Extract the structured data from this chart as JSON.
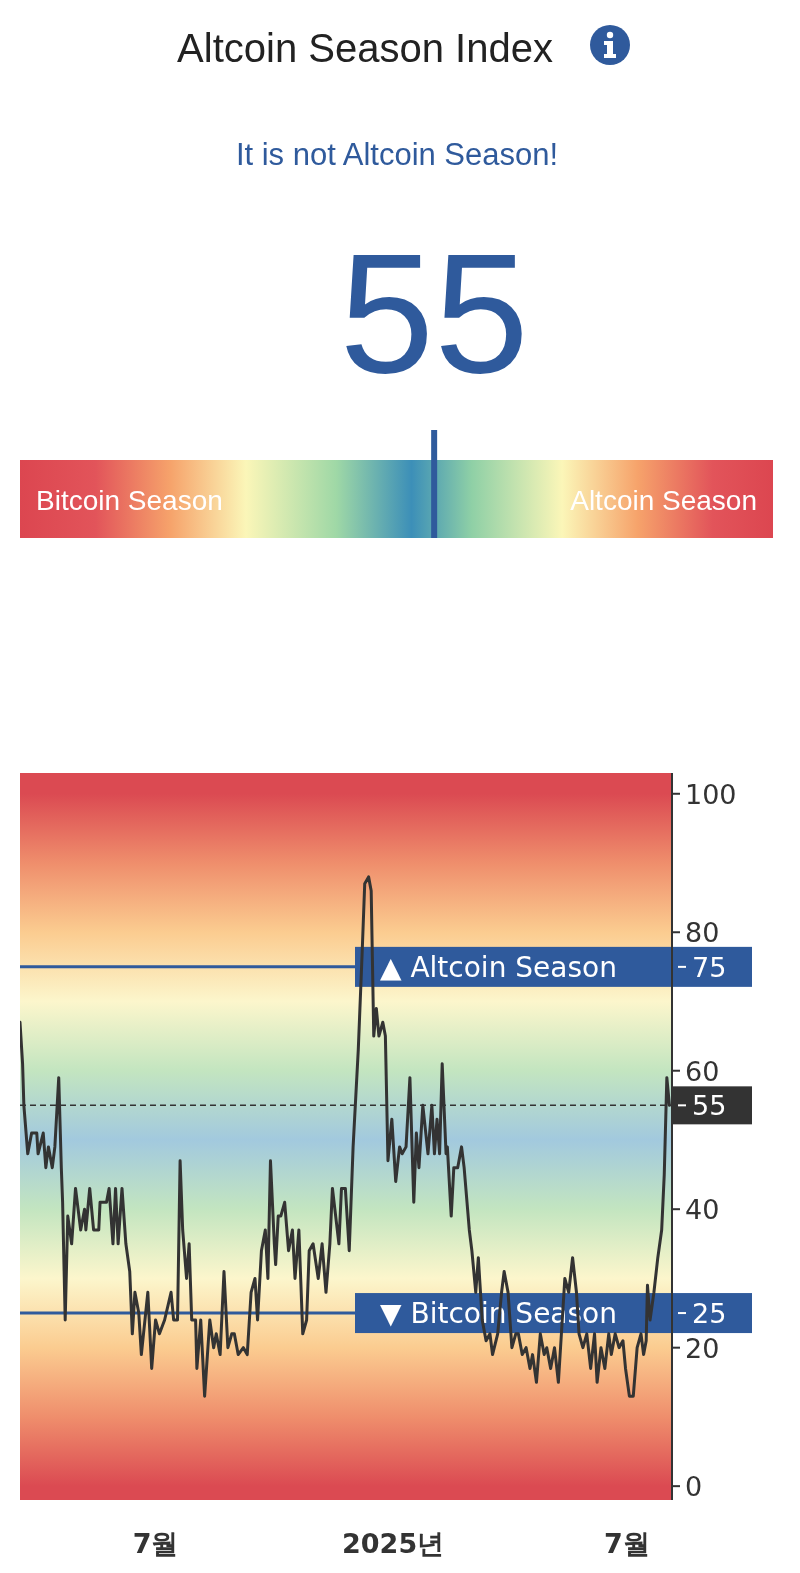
{
  "chart_data": [
    {
      "type": "other",
      "title": "Altcoin Season Index",
      "subtitle": "It is not Altcoin Season!",
      "annotations": [
        "Bitcoin Season",
        "Altcoin Season"
      ],
      "values": [
        55
      ],
      "color": "#2f5a9c",
      "data_labels": true
    },
    {
      "type": "line",
      "color": "#333333",
      "x": [
        "2024-03-18",
        "2024-03-20",
        "2024-03-21",
        "2024-03-24",
        "2024-03-27",
        "2024-03-31",
        "2024-04-01",
        "2024-04-05",
        "2024-04-07",
        "2024-04-09",
        "2024-04-12",
        "2024-04-14",
        "2024-04-17",
        "2024-04-19",
        "2024-04-20",
        "2024-04-22",
        "2024-04-24",
        "2024-04-27",
        "2024-04-30",
        "2024-05-04",
        "2024-05-07",
        "2024-05-08",
        "2024-05-11",
        "2024-05-14",
        "2024-05-18",
        "2024-05-19",
        "2024-05-24",
        "2024-05-26",
        "2024-05-29",
        "2024-05-31",
        "2024-06-02",
        "2024-06-05",
        "2024-06-08",
        "2024-06-11",
        "2024-06-13",
        "2024-06-15",
        "2024-06-18",
        "2024-06-20",
        "2024-06-25",
        "2024-06-28",
        "2024-07-01",
        "2024-07-04",
        "2024-07-08",
        "2024-07-13",
        "2024-07-15",
        "2024-07-18",
        "2024-07-20",
        "2024-07-22",
        "2024-07-25",
        "2024-07-27",
        "2024-07-29",
        "2024-08-01",
        "2024-08-02",
        "2024-08-05",
        "2024-08-08",
        "2024-08-12",
        "2024-08-15",
        "2024-08-17",
        "2024-08-20",
        "2024-08-23",
        "2024-08-26",
        "2024-08-29",
        "2024-08-31",
        "2024-09-03",
        "2024-09-07",
        "2024-09-10",
        "2024-09-13",
        "2024-09-16",
        "2024-09-18",
        "2024-09-21",
        "2024-09-24",
        "2024-09-26",
        "2024-09-28",
        "2024-10-01",
        "2024-10-02",
        "2024-10-04",
        "2024-10-06",
        "2024-10-09",
        "2024-10-12",
        "2024-10-15",
        "2024-10-17",
        "2024-10-20",
        "2024-10-23",
        "2024-10-26",
        "2024-10-28",
        "2024-10-31",
        "2024-11-04",
        "2024-11-07",
        "2024-11-10",
        "2024-11-13",
        "2024-11-15",
        "2024-11-20",
        "2024-11-22",
        "2024-11-25",
        "2024-11-28",
        "2024-12-01",
        "2024-12-05",
        "2024-12-08",
        "2024-12-10",
        "2024-12-13",
        "2024-12-15",
        "2024-12-17",
        "2024-12-19",
        "2024-12-21",
        "2024-12-24",
        "2024-12-26",
        "2024-12-28",
        "2024-12-31",
        "2025-01-03",
        "2025-01-06",
        "2025-01-08",
        "2025-01-11",
        "2025-01-14",
        "2025-01-17",
        "2025-01-19",
        "2025-01-21",
        "2025-01-24",
        "2025-01-28",
        "2025-01-31",
        "2025-02-02",
        "2025-02-04",
        "2025-02-06",
        "2025-02-08",
        "2025-02-11",
        "2025-02-12",
        "2025-02-15",
        "2025-02-17",
        "2025-02-20",
        "2025-02-23",
        "2025-02-25",
        "2025-03-01",
        "2025-03-03",
        "2025-03-06",
        "2025-03-08",
        "2025-03-11",
        "2025-03-14",
        "2025-03-17",
        "2025-03-19",
        "2025-03-23",
        "2025-03-26",
        "2025-03-28",
        "2025-03-31",
        "2025-04-03",
        "2025-04-06",
        "2025-04-08",
        "2025-04-11",
        "2025-04-14",
        "2025-04-17",
        "2025-04-19",
        "2025-04-22",
        "2025-04-25",
        "2025-04-28",
        "2025-04-30",
        "2025-05-03",
        "2025-05-06",
        "2025-05-09",
        "2025-05-12",
        "2025-05-14",
        "2025-05-17",
        "2025-05-20",
        "2025-05-23",
        "2025-05-25",
        "2025-05-28",
        "2025-05-31",
        "2025-06-03",
        "2025-06-06",
        "2025-06-08",
        "2025-06-11",
        "2025-06-14",
        "2025-06-17",
        "2025-06-19",
        "2025-06-22",
        "2025-06-25",
        "2025-06-28",
        "2025-06-30",
        "2025-07-03",
        "2025-07-06",
        "2025-07-09",
        "2025-07-12",
        "2025-07-14",
        "2025-07-16",
        "2025-07-17",
        "2025-07-19",
        "2025-07-22",
        "2025-07-25",
        "2025-07-28",
        "2025-07-30",
        "2025-08-01",
        "2025-08-03"
      ],
      "values": [
        67,
        61,
        55,
        48,
        51,
        51,
        48,
        51,
        46,
        49,
        46,
        49,
        59,
        46,
        41,
        24,
        39,
        35,
        43,
        37,
        40,
        37,
        43,
        37,
        37,
        41,
        41,
        43,
        35,
        43,
        35,
        43,
        35,
        31,
        22,
        28,
        25,
        19,
        28,
        17,
        24,
        22,
        24,
        28,
        24,
        24,
        47,
        37,
        30,
        35,
        24,
        24,
        17,
        24,
        13,
        24,
        20,
        22,
        19,
        31,
        20,
        22,
        22,
        19,
        20,
        19,
        28,
        30,
        24,
        34,
        37,
        30,
        47,
        35,
        32,
        39,
        39,
        41,
        34,
        37,
        30,
        37,
        22,
        24,
        34,
        35,
        30,
        35,
        28,
        35,
        43,
        35,
        43,
        43,
        34,
        49,
        63,
        77,
        87,
        88,
        86,
        65,
        69,
        65,
        67,
        65,
        47,
        53,
        44,
        49,
        48,
        49,
        59,
        41,
        51,
        46,
        55,
        48,
        55,
        48,
        53,
        48,
        61,
        48,
        49,
        39,
        46,
        46,
        49,
        46,
        37,
        34,
        28,
        33,
        24,
        21,
        22,
        19,
        22,
        28,
        31,
        28,
        20,
        22,
        22,
        19,
        20,
        17,
        19,
        15,
        22,
        19,
        20,
        17,
        20,
        15,
        24,
        30,
        28,
        33,
        28,
        22,
        20,
        22,
        17,
        22,
        15,
        20,
        17,
        22,
        19,
        22,
        20,
        21,
        17,
        13,
        13,
        20,
        22,
        19,
        21,
        29,
        24,
        28,
        33,
        37,
        45,
        59,
        55
      ],
      "xlim": [
        "2024-03-18",
        "2025-08-05"
      ],
      "ylim": [
        -2,
        103
      ],
      "xticks": [
        {
          "value": "2024-07-01",
          "label": "7월"
        },
        {
          "value": "2025-01-01",
          "label": "2025년"
        },
        {
          "value": "2025-07-01",
          "label": "7월"
        }
      ],
      "yticks": [
        0,
        20,
        40,
        60,
        80,
        100
      ],
      "ref_lines": [
        {
          "axis": "y",
          "value": 75,
          "label": "▲ Altcoin Season",
          "color": "#2f5a9c",
          "line_style": "solid"
        },
        {
          "axis": "y",
          "value": 25,
          "label": "▼ Bitcoin Season",
          "color": "#2f5a9c",
          "line_style": "solid"
        },
        {
          "axis": "y",
          "value": 55,
          "label": null,
          "color": "#333333",
          "line_style": "dashed"
        }
      ],
      "annotations": [
        "75",
        "25",
        "55"
      ]
    }
  ]
}
